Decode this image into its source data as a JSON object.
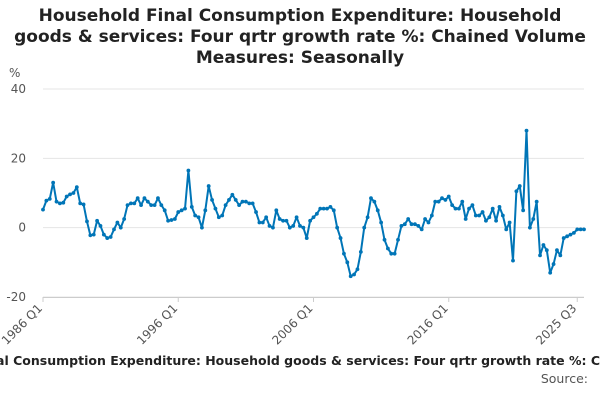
{
  "chart_data": {
    "type": "line",
    "title_lines": [
      "Household Final Consumption Expenditure: Household",
      "goods & services: Four qrtr growth rate %: Chained Volume",
      "Measures: Seasonally"
    ],
    "ylabel": "%",
    "ylim": [
      -20,
      40
    ],
    "yticks": [
      "40",
      "20",
      "0",
      "-20"
    ],
    "ytick_values": [
      40,
      20,
      0,
      -20
    ],
    "xticks": [
      "1986 Q1",
      "1996 Q1",
      "2006 Q1",
      "2016 Q1",
      "2025 Q3"
    ],
    "xtick_quarter_index": [
      0,
      40,
      80,
      120,
      158
    ],
    "grid": true,
    "line_color": "#0075b7",
    "footer_series": "Household Final Consumption Expenditure: Household goods & services: Four qrtr growth rate %: Chained Volume",
    "footer_source": "Source:",
    "series": [
      {
        "x_start": "1986 Q1",
        "frequency": "quarterly",
        "values": [
          5.2,
          7.8,
          8.3,
          13.0,
          7.5,
          7.0,
          7.2,
          9.0,
          9.6,
          10.0,
          11.7,
          7.0,
          6.7,
          1.8,
          -2.2,
          -2.0,
          2.0,
          0.5,
          -2.0,
          -3.0,
          -2.7,
          -0.5,
          1.5,
          0.0,
          2.5,
          6.5,
          7.0,
          7.0,
          8.5,
          6.5,
          8.5,
          7.5,
          6.5,
          6.5,
          8.5,
          6.5,
          5.0,
          2.0,
          2.2,
          2.5,
          4.5,
          5.0,
          5.5,
          16.5,
          6.0,
          3.5,
          3.0,
          0.0,
          5.0,
          12.0,
          8.0,
          5.5,
          3.0,
          3.5,
          6.5,
          8.0,
          9.5,
          8.0,
          6.5,
          7.5,
          7.5,
          7.0,
          7.0,
          4.5,
          1.5,
          1.5,
          3.0,
          0.5,
          0.0,
          5.0,
          2.5,
          2.0,
          2.0,
          0.0,
          0.5,
          3.0,
          0.5,
          0.0,
          -3.0,
          2.0,
          3.0,
          4.0,
          5.5,
          5.5,
          5.5,
          6.0,
          5.0,
          0.0,
          -3.0,
          -7.5,
          -10.0,
          -14.0,
          -13.5,
          -12.0,
          -7.0,
          0.0,
          3.0,
          8.5,
          7.5,
          5.0,
          1.5,
          -3.5,
          -6.0,
          -7.5,
          -7.5,
          -3.5,
          0.5,
          1.0,
          2.5,
          1.0,
          1.0,
          0.5,
          -0.5,
          2.5,
          1.5,
          3.5,
          7.5,
          7.5,
          8.5,
          8.0,
          9.0,
          6.5,
          5.5,
          5.5,
          7.5,
          2.5,
          5.5,
          6.5,
          3.5,
          3.5,
          4.5,
          2.0,
          3.0,
          5.5,
          2.0,
          6.0,
          3.5,
          -0.5,
          1.5,
          -9.5,
          10.5,
          12.0,
          5.0,
          28.0,
          0.0,
          2.5,
          7.5,
          -8.0,
          -5.0,
          -6.5,
          -13.0,
          -10.5,
          -6.5,
          -8.0,
          -3.0,
          -2.5,
          -2.0,
          -1.5,
          -0.5,
          -0.5,
          -0.5
        ]
      }
    ]
  }
}
